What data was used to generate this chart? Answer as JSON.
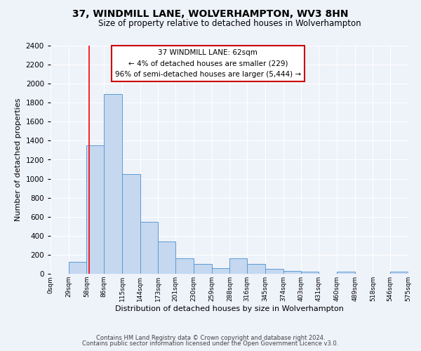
{
  "title": "37, WINDMILL LANE, WOLVERHAMPTON, WV3 8HN",
  "subtitle": "Size of property relative to detached houses in Wolverhampton",
  "xlabel": "Distribution of detached houses by size in Wolverhampton",
  "ylabel": "Number of detached properties",
  "footer_line1": "Contains HM Land Registry data © Crown copyright and database right 2024.",
  "footer_line2": "Contains public sector information licensed under the Open Government Licence v3.0.",
  "bin_edges": [
    0,
    29,
    58,
    86,
    115,
    144,
    173,
    201,
    230,
    259,
    288,
    316,
    345,
    374,
    403,
    431,
    460,
    489,
    518,
    546,
    575
  ],
  "bin_counts": [
    0,
    125,
    1350,
    1890,
    1050,
    545,
    340,
    160,
    105,
    60,
    160,
    100,
    55,
    30,
    20,
    0,
    20,
    0,
    0,
    20
  ],
  "bar_color": "#c5d8f0",
  "bar_edge_color": "#5b9bd5",
  "red_line_x": 62,
  "ylim": [
    0,
    2400
  ],
  "yticks": [
    0,
    200,
    400,
    600,
    800,
    1000,
    1200,
    1400,
    1600,
    1800,
    2000,
    2200,
    2400
  ],
  "annotation_title": "37 WINDMILL LANE: 62sqm",
  "annotation_line1": "← 4% of detached houses are smaller (229)",
  "annotation_line2": "96% of semi-detached houses are larger (5,444) →",
  "annotation_box_color": "#ffffff",
  "annotation_box_edge": "#cc0000",
  "bg_color": "#eef2f9",
  "grid_color": "#ffffff",
  "tick_labels": [
    "0sqm",
    "29sqm",
    "58sqm",
    "86sqm",
    "115sqm",
    "144sqm",
    "173sqm",
    "201sqm",
    "230sqm",
    "259sqm",
    "288sqm",
    "316sqm",
    "345sqm",
    "374sqm",
    "403sqm",
    "431sqm",
    "460sqm",
    "489sqm",
    "518sqm",
    "546sqm",
    "575sqm"
  ]
}
